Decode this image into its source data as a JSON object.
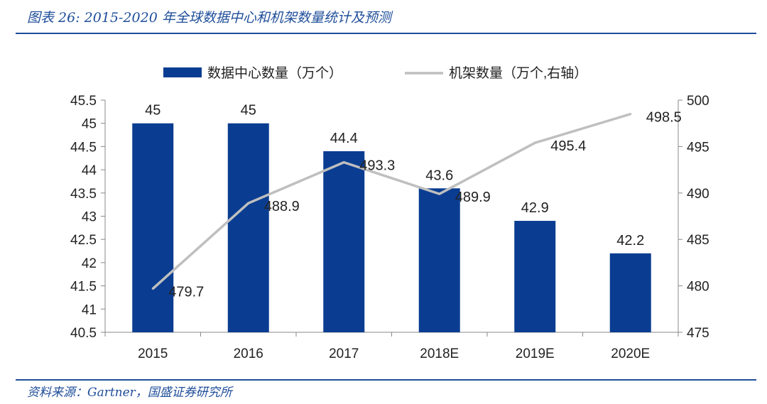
{
  "figure": {
    "title": "图表 26:  2015-2020 年全球数据中心和机架数量统计及预测",
    "source": "资料来源：Gartner，国盛证券研究所"
  },
  "chart_data": {
    "type": "bar",
    "categories": [
      "2015",
      "2016",
      "2017",
      "2018E",
      "2019E",
      "2020E"
    ],
    "series": [
      {
        "name": "数据中心数量（万个）",
        "type": "bar",
        "axis": "left",
        "color": "#0a3d91",
        "values": [
          45,
          45,
          44.4,
          43.6,
          42.9,
          42.2
        ],
        "labels": [
          "45",
          "45",
          "44.4",
          "43.6",
          "42.9",
          "42.2"
        ]
      },
      {
        "name": "机架数量（万个,右轴）",
        "type": "line",
        "axis": "right",
        "color": "#bfbfbf",
        "values": [
          479.7,
          488.9,
          493.3,
          489.9,
          495.4,
          498.5
        ],
        "labels": [
          "479.7",
          "488.9",
          "493.3",
          "489.9",
          "495.4",
          "498.5"
        ]
      }
    ],
    "y_left": {
      "range": [
        40.5,
        45.5
      ],
      "ticks": [
        40.5,
        41,
        41.5,
        42,
        42.5,
        43,
        43.5,
        44,
        44.5,
        45,
        45.5
      ],
      "tick_labels": [
        "40.5",
        "41",
        "41.5",
        "42",
        "42.5",
        "43",
        "43.5",
        "44",
        "44.5",
        "45",
        "45.5"
      ]
    },
    "y_right": {
      "range": [
        475,
        500
      ],
      "ticks": [
        475,
        480,
        485,
        490,
        495,
        500
      ],
      "tick_labels": [
        "475",
        "480",
        "485",
        "490",
        "495",
        "500"
      ]
    },
    "legend_position": "top-center",
    "grid": false
  }
}
